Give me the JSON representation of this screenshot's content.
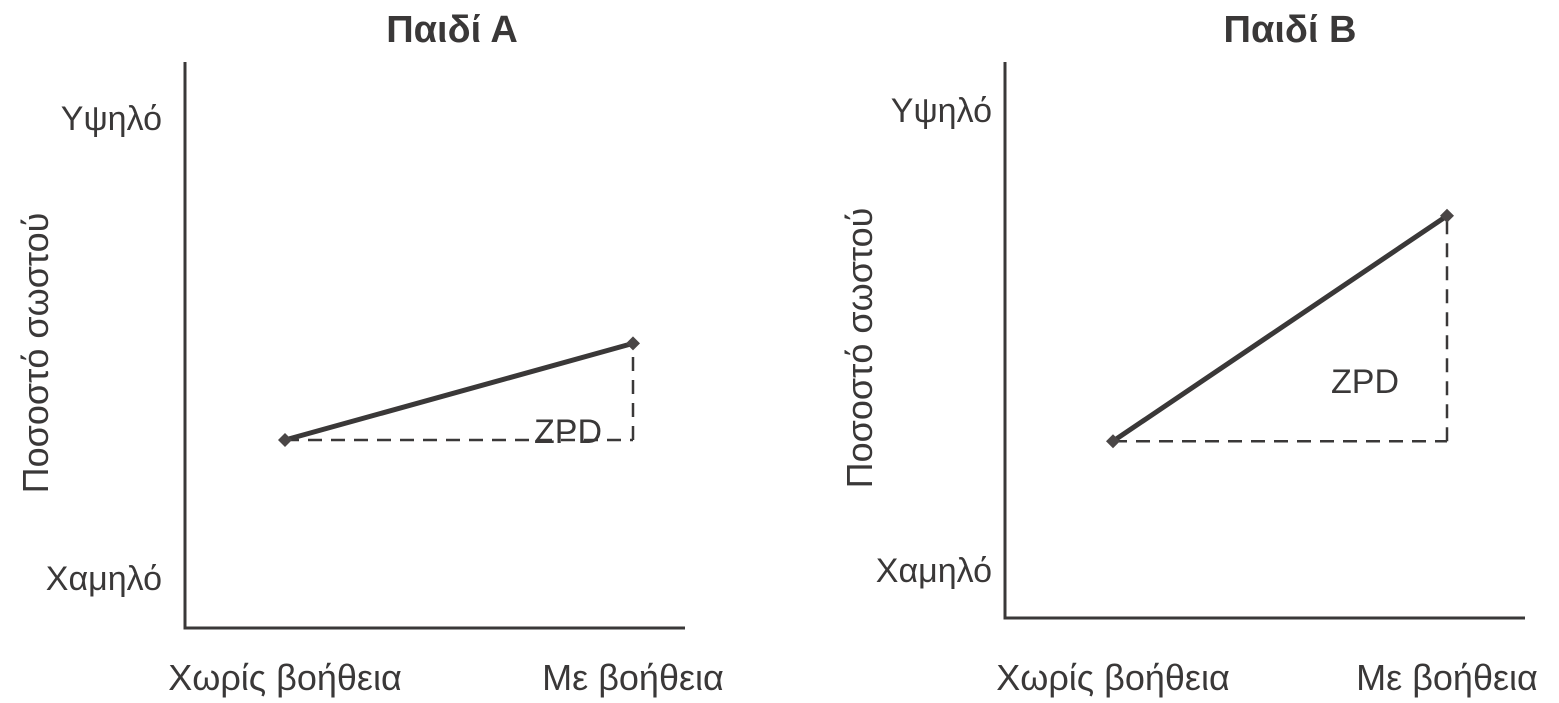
{
  "chart_data": [
    {
      "type": "line",
      "title": "Παιδί Α",
      "ylabel": "Ποσοστό σωστού",
      "xlabel": "",
      "categories": [
        "Χωρίς βοήθεια",
        "Με βοήθεια"
      ],
      "y_ticks": [
        "Υψηλό",
        "Χαμηλό"
      ],
      "ylim": [
        0,
        100
      ],
      "series": [
        {
          "values": [
            30,
            51
          ]
        }
      ],
      "annotation": "ZPD",
      "grid": false,
      "colors": {
        "line": "#3a3838"
      }
    },
    {
      "type": "line",
      "title": "Παιδί Β",
      "ylabel": "Ποσοστό σωστού",
      "xlabel": "",
      "categories": [
        "Χωρίς βοήθεια",
        "Με βοήθεια"
      ],
      "y_ticks": [
        "Υψηλό",
        "Χαμηλό"
      ],
      "ylim": [
        0,
        100
      ],
      "series": [
        {
          "values": [
            28,
            77
          ]
        }
      ],
      "annotation": "ZPD",
      "grid": false,
      "colors": {
        "line": "#3a3838"
      }
    }
  ]
}
